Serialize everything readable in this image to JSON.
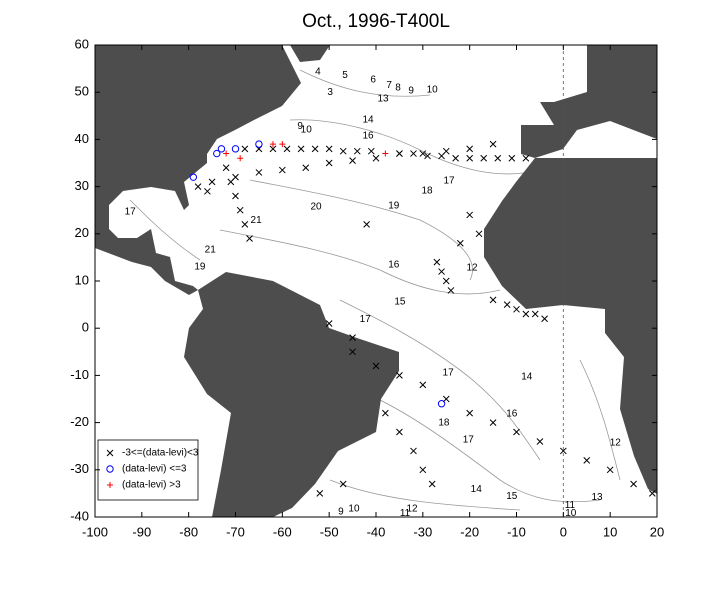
{
  "chart_data": {
    "type": "scatter",
    "title": "Oct., 1996-T400L",
    "xlim": [
      -100,
      20
    ],
    "ylim": [
      -40,
      60
    ],
    "xticks": [
      -100,
      -90,
      -80,
      -70,
      -60,
      -50,
      -40,
      -30,
      -20,
      -10,
      0,
      10,
      20
    ],
    "yticks": [
      -40,
      -30,
      -20,
      -10,
      0,
      10,
      20,
      30,
      40,
      50,
      60
    ],
    "legend": "lower left",
    "series": [
      {
        "name": "-3<=(data-levi)<3",
        "marker": "x",
        "color": "#000000",
        "x": [
          -68,
          -65,
          -62,
          -59,
          -56,
          -53,
          -50,
          -47,
          -44,
          -41,
          -35,
          -32,
          -29,
          -26,
          -23,
          -20,
          -17,
          -14,
          -11,
          -8,
          -75,
          -70,
          -65,
          -60,
          -55,
          -50,
          -45,
          -40,
          -35,
          -30,
          -25,
          -20,
          -15,
          -72,
          -71,
          -70,
          -69,
          -68,
          -67,
          -45,
          -40,
          -35,
          -30,
          -25,
          -20,
          -15,
          -10,
          -5,
          0,
          5,
          10,
          15,
          19,
          -27,
          -26,
          -25,
          -24,
          -15,
          -12,
          -10,
          -8,
          -6,
          -4,
          -50,
          -45,
          -38,
          -35,
          -32,
          -30,
          -28,
          -52,
          -47,
          -42,
          -18,
          -22,
          -20,
          -78,
          -76
        ],
        "values": [
          38,
          38,
          38,
          38,
          38,
          38,
          38,
          37.5,
          37.5,
          37.5,
          37,
          37,
          36.5,
          36.5,
          36,
          36,
          36,
          36,
          36,
          36,
          31,
          32,
          33,
          33.5,
          34,
          35,
          35.5,
          36,
          37,
          37,
          37.5,
          38,
          39,
          34,
          31,
          28,
          25,
          22,
          19,
          -5,
          -8,
          -10,
          -12,
          -15,
          -18,
          -20,
          -22,
          -24,
          -26,
          -28,
          -30,
          -33,
          -35,
          14,
          12,
          10,
          8,
          6,
          5,
          4,
          3,
          3,
          2,
          1,
          -2,
          -18,
          -22,
          -26,
          -30,
          -33,
          -35,
          -33,
          22,
          20,
          18,
          24,
          30,
          29
        ]
      },
      {
        "name": "(data-levi) <=3",
        "marker": "o",
        "color": "#0000ff",
        "x": [
          -79,
          -74,
          -73,
          -70,
          -65,
          -26
        ],
        "values": [
          32,
          37,
          38,
          38,
          39,
          -16
        ]
      },
      {
        "name": "(data-levi) >3",
        "marker": "+",
        "color": "#ff0000",
        "x": [
          -72,
          -69,
          -62,
          -60,
          -38
        ],
        "values": [
          37,
          36,
          39,
          39,
          37
        ]
      }
    ],
    "contour_labels": [
      {
        "label": "4",
        "x": -52.4,
        "y": 54.3
      },
      {
        "label": "5",
        "x": -46.6,
        "y": 53.6
      },
      {
        "label": "6",
        "x": -40.6,
        "y": 52.6
      },
      {
        "label": "7",
        "x": -37.2,
        "y": 51.5
      },
      {
        "label": "8",
        "x": -35.3,
        "y": 50.9
      },
      {
        "label": "9",
        "x": -32.5,
        "y": 50.3
      },
      {
        "label": "10",
        "x": -28,
        "y": 50.5
      },
      {
        "label": "3",
        "x": -49.8,
        "y": 50
      },
      {
        "label": "9",
        "x": -56.2,
        "y": 42.8
      },
      {
        "label": "10",
        "x": -54.9,
        "y": 42
      },
      {
        "label": "13",
        "x": -38.5,
        "y": 48.6
      },
      {
        "label": "14",
        "x": -41.7,
        "y": 44.1
      },
      {
        "label": "16",
        "x": -41.7,
        "y": 40.7
      },
      {
        "label": "17",
        "x": -92.5,
        "y": 24.6
      },
      {
        "label": "20",
        "x": -52.8,
        "y": 25.7
      },
      {
        "label": "18",
        "x": -29.1,
        "y": 29.1
      },
      {
        "label": "19",
        "x": -36.2,
        "y": 25.9
      },
      {
        "label": "21",
        "x": -65.6,
        "y": 22.9
      },
      {
        "label": "21",
        "x": -75.4,
        "y": 16.6
      },
      {
        "label": "19",
        "x": -77.6,
        "y": 13
      },
      {
        "label": "16",
        "x": -36.2,
        "y": 13.4
      },
      {
        "label": "15",
        "x": -34.9,
        "y": 5.6
      },
      {
        "label": "17",
        "x": -42.3,
        "y": 1.9
      },
      {
        "label": "17",
        "x": -24.6,
        "y": -9.5
      },
      {
        "label": "18",
        "x": -25.5,
        "y": -20.1
      },
      {
        "label": "16",
        "x": -11,
        "y": -18.2
      },
      {
        "label": "17",
        "x": -20.3,
        "y": -23.7
      },
      {
        "label": "14",
        "x": -18.6,
        "y": -34.1
      },
      {
        "label": "15",
        "x": -11,
        "y": -35.6
      },
      {
        "label": "12",
        "x": -32.3,
        "y": -38.3
      },
      {
        "label": "10",
        "x": -44.7,
        "y": -38.3
      },
      {
        "label": "9",
        "x": -47.5,
        "y": -38.9
      },
      {
        "label": "11",
        "x": -33.8,
        "y": -39.2
      },
      {
        "label": "12",
        "x": 11.1,
        "y": -24.3
      },
      {
        "label": "11",
        "x": 1.4,
        "y": -37.5
      },
      {
        "label": "10",
        "x": 1.6,
        "y": -39.2
      },
      {
        "label": "13",
        "x": 7.2,
        "y": -35.8
      },
      {
        "label": "14",
        "x": -7.8,
        "y": -10.3
      },
      {
        "label": "17",
        "x": -24.4,
        "y": 31.2
      },
      {
        "label": "12",
        "x": -19.5,
        "y": 12.8
      }
    ]
  }
}
